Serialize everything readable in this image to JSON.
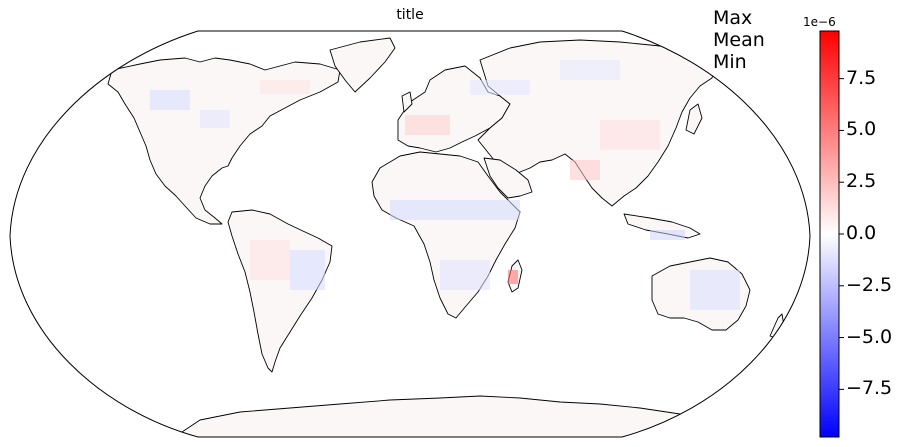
{
  "map": {
    "title": "title",
    "projection": "Robinson",
    "colormap": "bwr"
  },
  "stats_labels": [
    "Max",
    "Mean",
    "Min"
  ],
  "colorbar": {
    "exponent_label": "1e−6",
    "min": -9.8,
    "max": 9.8,
    "tick_values": [
      7.5,
      5.0,
      2.5,
      0.0,
      -2.5,
      -5.0,
      -7.5
    ],
    "tick_labels": [
      "7.5",
      "5.0",
      "2.5",
      "0.0",
      "−2.5",
      "−5.0",
      "−7.5"
    ],
    "color_low": "#0000ff",
    "color_mid": "#ffffff",
    "color_high": "#ff0000"
  }
}
